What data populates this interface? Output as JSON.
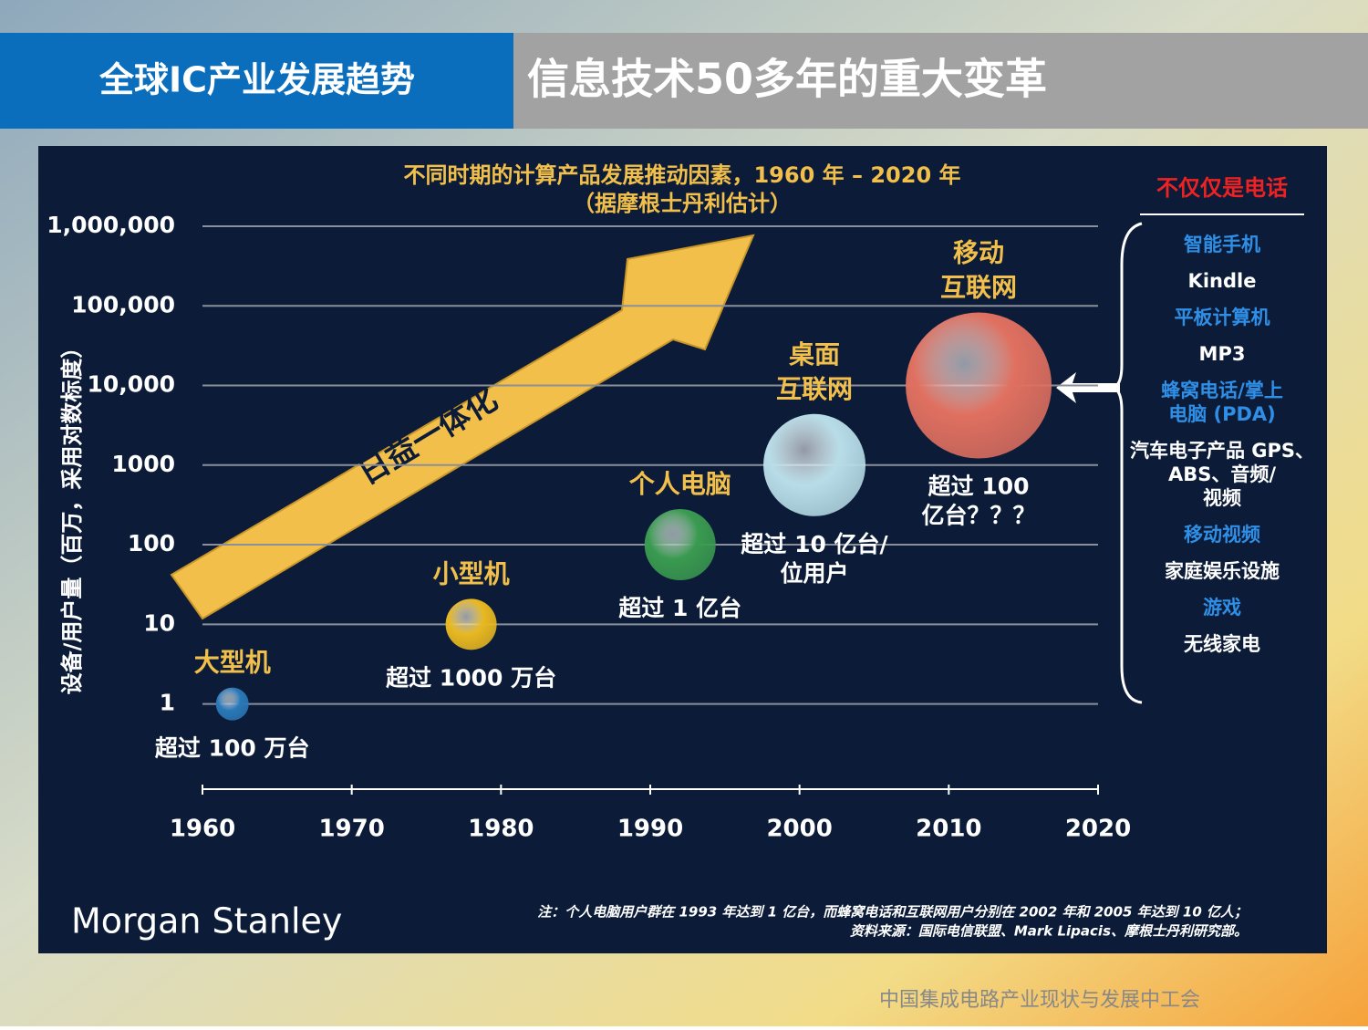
{
  "header": {
    "section": "全球IC产业发展趋势",
    "title": "信息技术50多年的重大变革"
  },
  "chart_data": {
    "type": "bubble",
    "title": "不同时期的计算产品发展推动因素，1960 年 – 2020 年",
    "subtitle": "（据摩根士丹利估计）",
    "y_label": "设备/用户量（百万，采用对数标度）",
    "log_y": true,
    "grid": true,
    "xlim": [
      1960,
      2020
    ],
    "xticks": [
      1960,
      1970,
      1980,
      1990,
      2000,
      2010,
      2020
    ],
    "ylim": [
      0.085,
      1000000
    ],
    "yticks": [
      1,
      10,
      100,
      1000,
      {
        "value": 10000,
        "label": "10,000"
      },
      {
        "value": 100000,
        "label": "100,000"
      },
      {
        "value": 1000000,
        "label": "1,000,000"
      }
    ],
    "series": [
      {
        "name": [
          "大型机"
        ],
        "color": "#2a78b8",
        "x": [
          1962
        ],
        "values": [
          1
        ],
        "sizes": [
          18
        ],
        "annotation": [
          "超过 100 万台"
        ]
      },
      {
        "name": [
          "小型机"
        ],
        "color": "#e8b820",
        "x": [
          1978
        ],
        "values": [
          10
        ],
        "sizes": [
          28
        ],
        "annotation": [
          "超过 1000 万台"
        ]
      },
      {
        "name": [
          "个人电脑"
        ],
        "color": "#3a9a50",
        "x": [
          1992
        ],
        "values": [
          100
        ],
        "sizes": [
          39
        ],
        "annotation": [
          "超过 1 亿台"
        ]
      },
      {
        "name": [
          "桌面",
          "互联网"
        ],
        "color": "#b8dde8",
        "x": [
          2001
        ],
        "values": [
          1000
        ],
        "sizes": [
          56
        ],
        "annotation": [
          "超过 10 亿台/",
          "位用户"
        ]
      },
      {
        "name": [
          "移动",
          "互联网"
        ],
        "color": "#e07060",
        "x": [
          2012
        ],
        "values": [
          10000
        ],
        "sizes": [
          80
        ],
        "annotation": [
          "超过 100",
          "亿台？？？"
        ]
      }
    ],
    "arrow_label": "日益一体化",
    "side_panel": {
      "title": "不仅仅是电话",
      "items": [
        {
          "text": [
            "智能手机"
          ],
          "color": "#2f8fe6"
        },
        {
          "text": [
            "Kindle"
          ],
          "color": "#ffffff"
        },
        {
          "text": [
            "平板计算机"
          ],
          "color": "#2f8fe6"
        },
        {
          "text": [
            "MP3"
          ],
          "color": "#ffffff"
        },
        {
          "text": [
            "蜂窝电话/掌上",
            "电脑 (PDA)"
          ],
          "color": "#2f8fe6"
        },
        {
          "text": [
            "汽车电子产品 GPS、",
            "ABS、音频/",
            "视频"
          ],
          "color": "#ffffff"
        },
        {
          "text": [
            "移动视频"
          ],
          "color": "#2f8fe6"
        },
        {
          "text": [
            "家庭娱乐设施"
          ],
          "color": "#ffffff"
        },
        {
          "text": [
            "游戏"
          ],
          "color": "#2f8fe6"
        },
        {
          "text": [
            "无线家电"
          ],
          "color": "#ffffff"
        }
      ]
    },
    "note": "注：个人电脑用户群在 1993 年达到 1 亿台，而蜂窝电话和互联网用户分别在 2002 年和 2005 年达到 10 亿人；",
    "source": "资料来源：国际电信联盟、Mark Lipacis、摩根士丹利研究部。",
    "brand": "Morgan Stanley"
  },
  "footer": "中国集成电路产业现状与发展中工会"
}
